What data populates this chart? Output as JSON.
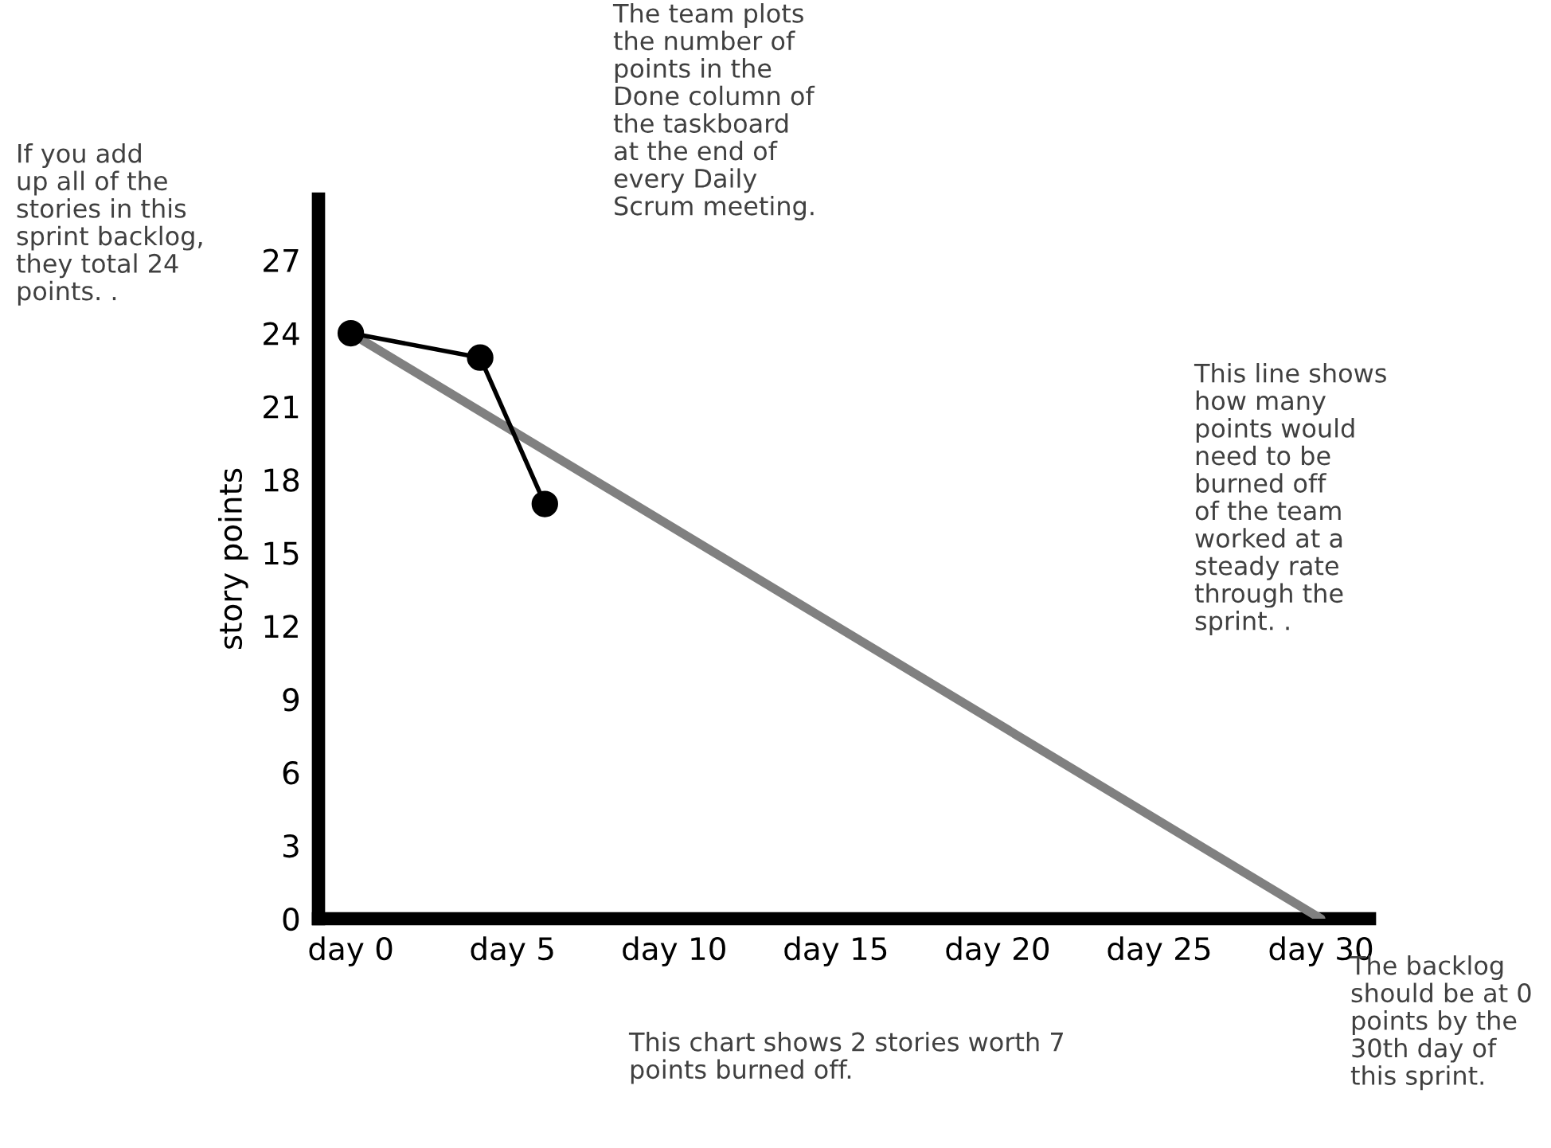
{
  "chart_data": {
    "type": "line",
    "ylabel": "story points",
    "categories": [
      "day 0",
      null,
      null,
      null,
      null,
      "day 5",
      null,
      null,
      null,
      null,
      "day 10",
      null,
      null,
      null,
      null,
      "day 15",
      null,
      null,
      null,
      null,
      "day 20",
      null,
      null,
      null,
      null,
      "day 25",
      null,
      null,
      null,
      null,
      "day 30"
    ],
    "ylim": [
      0,
      29.5
    ],
    "yticks": [
      0,
      3,
      6,
      9,
      12,
      15,
      18,
      21,
      24,
      27
    ],
    "series": [
      {
        "color": "#808080",
        "marker": "none",
        "values": [
          24,
          null,
          null,
          null,
          null,
          null,
          null,
          null,
          null,
          null,
          null,
          null,
          null,
          null,
          null,
          null,
          null,
          null,
          null,
          null,
          null,
          null,
          null,
          null,
          null,
          null,
          null,
          null,
          null,
          null,
          0
        ]
      },
      {
        "color": "#000000",
        "marker": "circle",
        "values": [
          24,
          null,
          null,
          null,
          23,
          null,
          17,
          null,
          null,
          null,
          null,
          null,
          null,
          null,
          null,
          null,
          null,
          null,
          null,
          null,
          null,
          null,
          null,
          null,
          null,
          null,
          null,
          null,
          null,
          null,
          null
        ]
      }
    ],
    "annotations": [
      "If you add\nup all of the\nstories in this\nsprint backlog,\nthey total 24\npoints. .",
      "The team plots\nthe number of\npoints in the\nDone column of\nthe taskboard\nat the end of\nevery Daily\nScrum meeting.",
      "This line shows\nhow many\npoints would\nneed to be\nburned off\nof the team\nworked at a\nsteady rate\nthrough the\nsprint. .",
      "This chart shows 2 stories worth 7\npoints burned off.",
      "The backlog\nshould be at 0\npoints by the\n30th day of\nthis sprint."
    ],
    "grid": false,
    "legend": false,
    "line_style": "solid"
  }
}
